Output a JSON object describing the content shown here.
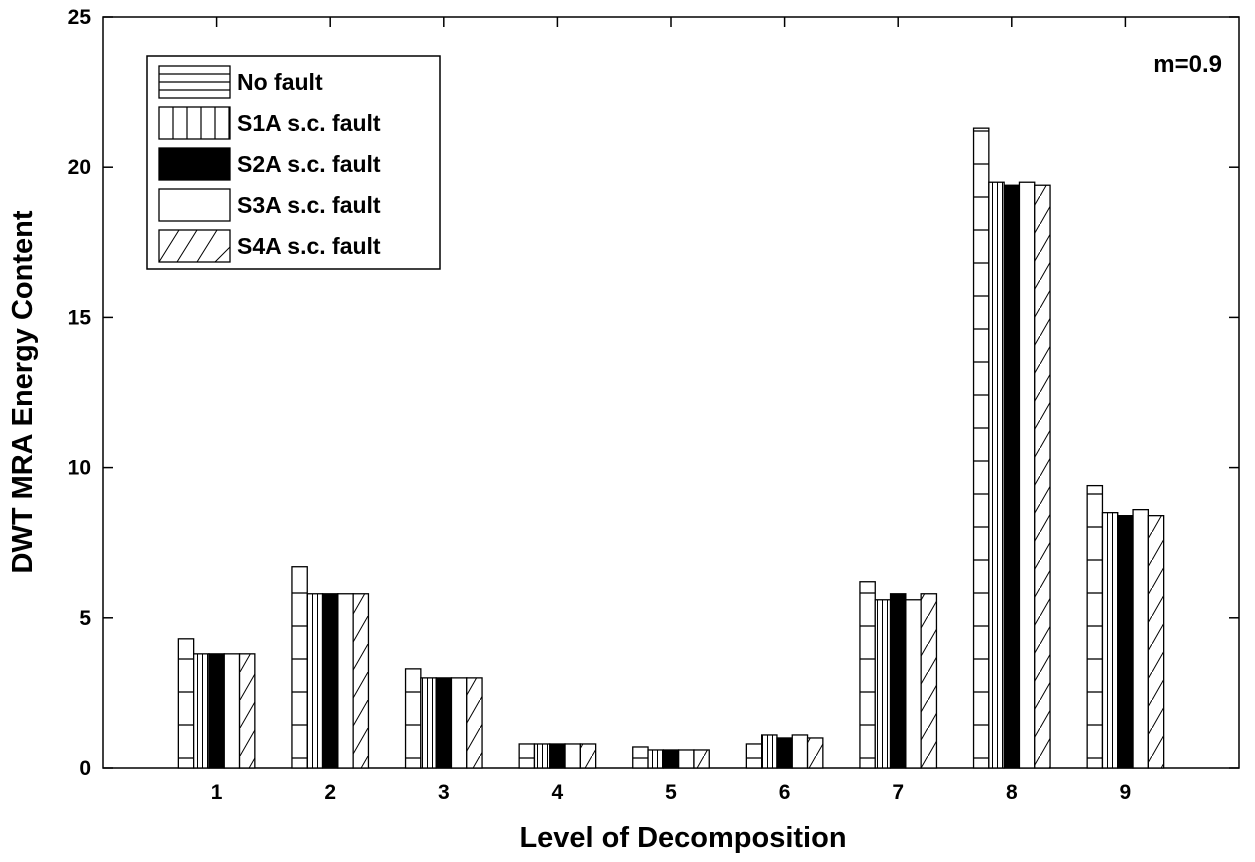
{
  "chart_data": {
    "type": "bar",
    "xlabel": "Level of Decomposition",
    "ylabel": "DWT MRA Energy Content",
    "annotation": "m=0.9",
    "categories": [
      "1",
      "2",
      "3",
      "4",
      "5",
      "6",
      "7",
      "8",
      "9"
    ],
    "ylim": [
      0,
      25
    ],
    "yticks": [
      "0",
      "5",
      "10",
      "15",
      "20",
      "25"
    ],
    "grid": false,
    "legend_position": "top-left",
    "series": [
      {
        "name": "No fault",
        "pattern": "horizontal-lines",
        "values": [
          4.3,
          6.7,
          3.3,
          0.8,
          0.7,
          0.8,
          6.2,
          21.3,
          9.4
        ]
      },
      {
        "name": "S1A s.c. fault",
        "pattern": "vertical-lines",
        "values": [
          3.8,
          5.8,
          3.0,
          0.8,
          0.6,
          1.1,
          5.6,
          19.5,
          8.5
        ]
      },
      {
        "name": "S2A s.c. fault",
        "pattern": "solid-black",
        "values": [
          3.8,
          5.8,
          3.0,
          0.8,
          0.6,
          1.0,
          5.8,
          19.4,
          8.4
        ]
      },
      {
        "name": "S3A s.c. fault",
        "pattern": "plain-white",
        "values": [
          3.8,
          5.8,
          3.0,
          0.8,
          0.6,
          1.1,
          5.6,
          19.5,
          8.6
        ]
      },
      {
        "name": "S4A s.c. fault",
        "pattern": "diagonal-lines",
        "values": [
          3.8,
          5.8,
          3.0,
          0.8,
          0.6,
          1.0,
          5.8,
          19.4,
          8.4
        ]
      }
    ]
  }
}
